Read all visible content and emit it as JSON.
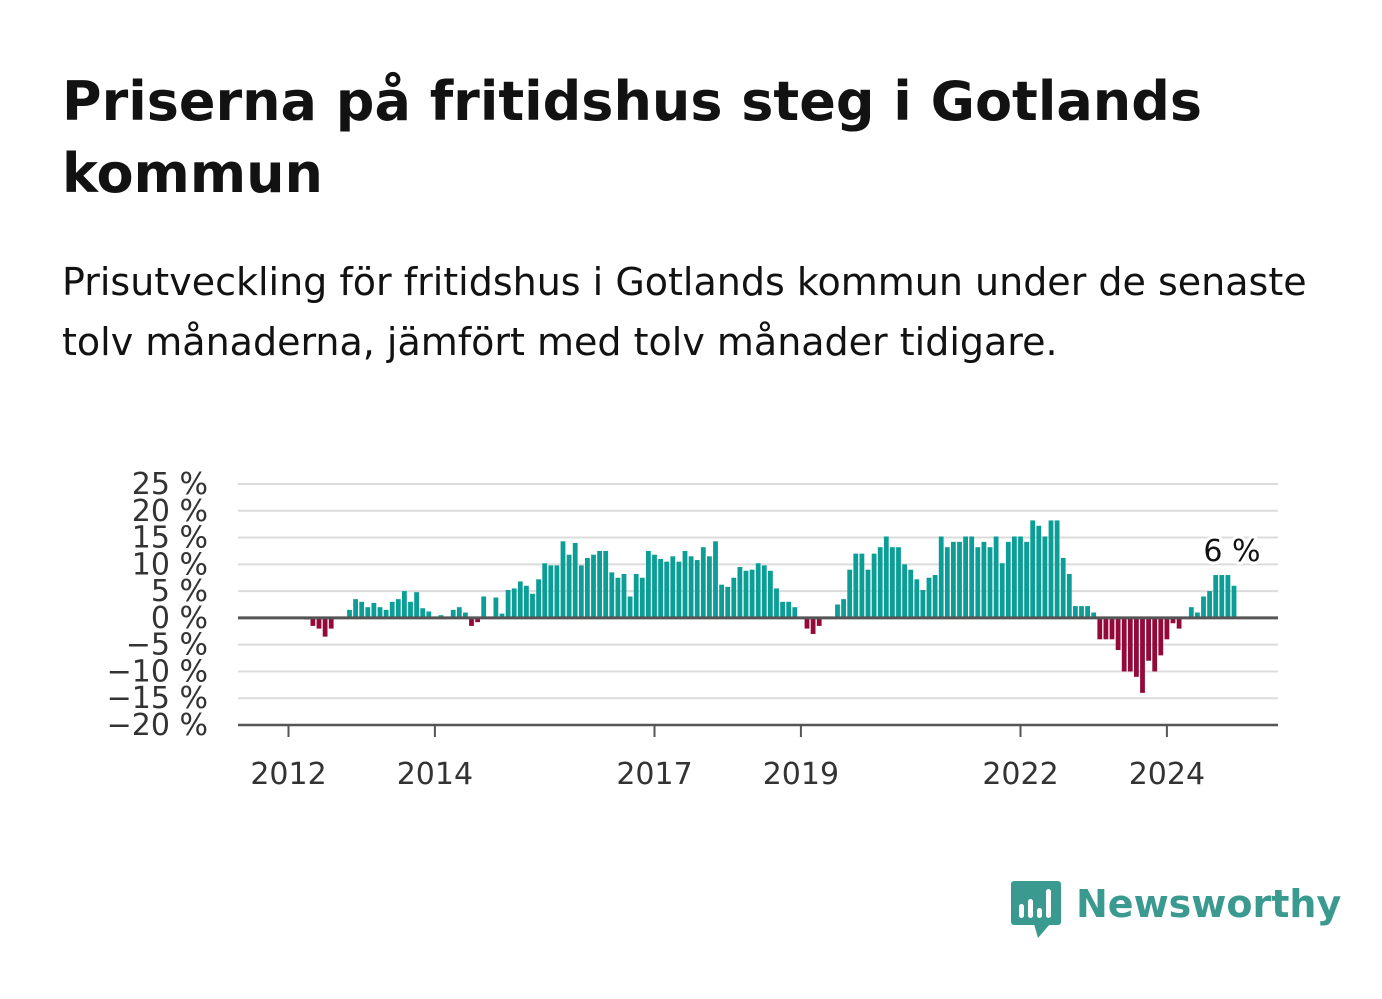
{
  "title": "Priserna på fritidshus steg i Gotlands kommun",
  "subtitle": "Prisutveckling för fritidshus i Gotlands kommun under de senaste tolv månaderna, jämfört med tolv månader tidigare.",
  "brand": {
    "name": "Newsworthy",
    "logo_icon": "bar-chart-speech-bubble-icon"
  },
  "colors": {
    "positive": "#0a9e96",
    "negative": "#930a3a",
    "brand": "#3a9a8f"
  },
  "chart_data": {
    "type": "bar",
    "y_unit": "%",
    "ylim": [
      -20,
      25
    ],
    "y_ticks": [
      "25 %",
      "20 %",
      "15 %",
      "10 %",
      "5 %",
      "0 %",
      "−5 %",
      "−10 %",
      "−15 %",
      "−20 %"
    ],
    "y_tick_values": [
      25,
      20,
      15,
      10,
      5,
      0,
      -5,
      -10,
      -15,
      -20
    ],
    "x_ticks": [
      "2012",
      "2014",
      "2017",
      "2019",
      "2022",
      "2024"
    ],
    "x_tick_index": [
      0,
      24,
      60,
      84,
      120,
      144
    ],
    "grid": "horizontal",
    "last_value_label": "6 %",
    "start_month": "2011-09",
    "values": [
      0,
      0,
      0,
      -0.3,
      -1.5,
      -2,
      -3.5,
      -2,
      0,
      0.2,
      1.5,
      3.5,
      3,
      2,
      2.8,
      2,
      1.5,
      3,
      3.5,
      5,
      3,
      4.8,
      1.8,
      1.2,
      0,
      0.5,
      0,
      1.5,
      2,
      1,
      -1.5,
      -0.8,
      4,
      0,
      3.8,
      0.8,
      5.2,
      5.5,
      6.8,
      6,
      4.5,
      7.2,
      10.2,
      9.8,
      9.8,
      14.3,
      11.8,
      14,
      9.8,
      11.2,
      11.8,
      12.5,
      12.5,
      8.5,
      7.5,
      8.2,
      4,
      8.2,
      7.5,
      12.5,
      11.8,
      11,
      10.5,
      11.5,
      10.5,
      12.5,
      11.5,
      10.8,
      13.2,
      11.5,
      14.3,
      6.2,
      5.8,
      7.5,
      9.5,
      8.8,
      9,
      10.2,
      9.8,
      8.8,
      5.5,
      3,
      3,
      2,
      0,
      -2,
      -3,
      -1.5,
      0,
      0,
      2.5,
      3.5,
      9,
      12,
      12,
      9,
      12,
      13.2,
      15.2,
      13.2,
      13.2,
      10,
      9,
      7.2,
      5.2,
      7.5,
      8,
      15.2,
      13.2,
      14.2,
      14.2,
      15.2,
      15.2,
      13.2,
      14.2,
      13.2,
      15.2,
      10.2,
      14.2,
      15.2,
      15.2,
      14.2,
      18.2,
      17.2,
      15.2,
      18.2,
      18.2,
      11.2,
      8.2,
      2.2,
      2.2,
      2.2,
      1,
      -4,
      -4,
      -4,
      -6,
      -10,
      -10,
      -11,
      -14,
      -8,
      -10,
      -7,
      -4,
      -1,
      -2,
      0,
      2,
      1,
      4,
      5,
      8,
      8,
      8,
      6
    ]
  }
}
